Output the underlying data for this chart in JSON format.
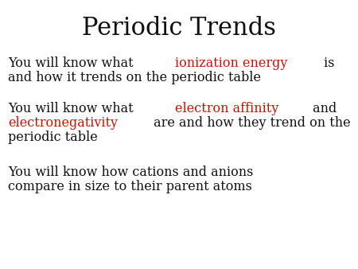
{
  "title": "Periodic Trends",
  "title_fontsize": 22,
  "title_color": "#111111",
  "background_color": "#ffffff",
  "text_color": "#111111",
  "highlight_color": "#cc1100",
  "body_fontsize": 11.5,
  "font_family": "DejaVu Serif",
  "bullet1": {
    "segments": [
      {
        "text": "You will know what ",
        "color": "#111111"
      },
      {
        "text": "ionization energy",
        "color": "#cc1100"
      },
      {
        "text": " is",
        "color": "#111111"
      }
    ],
    "line2": "and how it trends on the periodic table"
  },
  "bullet2": {
    "line1_segments": [
      {
        "text": "You will know what ",
        "color": "#111111"
      },
      {
        "text": "electron affinity",
        "color": "#cc1100"
      },
      {
        "text": " and",
        "color": "#111111"
      }
    ],
    "line2_segments": [
      {
        "text": "electronegativity",
        "color": "#cc1100"
      },
      {
        "text": " are and how they trend on the",
        "color": "#111111"
      }
    ],
    "line3": "periodic table"
  },
  "bullet3_line1": "You will know how cations and anions",
  "bullet3_line2": "compare in size to their parent atoms"
}
